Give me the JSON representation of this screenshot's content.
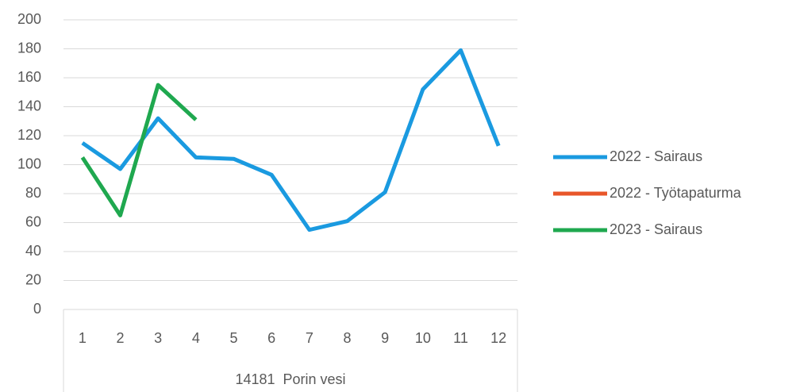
{
  "chart_data": {
    "type": "line",
    "categories": [
      "1",
      "2",
      "3",
      "4",
      "5",
      "6",
      "7",
      "8",
      "9",
      "10",
      "11",
      "12"
    ],
    "group_label": "14181  Porin vesi",
    "series": [
      {
        "name": "2022 - Sairaus",
        "color": "#1a9ae0",
        "values": [
          115,
          97,
          132,
          105,
          104,
          93,
          55,
          61,
          81,
          152,
          179,
          113
        ]
      },
      {
        "name": "2022 - Työtapaturma",
        "color": "#e8562a",
        "values": [
          null,
          null,
          null,
          null,
          null,
          null,
          null,
          null,
          null,
          null,
          null,
          null
        ]
      },
      {
        "name": "2023 - Sairaus",
        "color": "#1fa84f",
        "values": [
          105,
          65,
          155,
          131,
          null,
          null,
          null,
          null,
          null,
          null,
          null,
          null
        ]
      }
    ],
    "ylim": [
      0,
      200
    ],
    "yticks": [
      0,
      20,
      40,
      60,
      80,
      100,
      120,
      140,
      160,
      180,
      200
    ],
    "grid": true,
    "legend": "right"
  }
}
